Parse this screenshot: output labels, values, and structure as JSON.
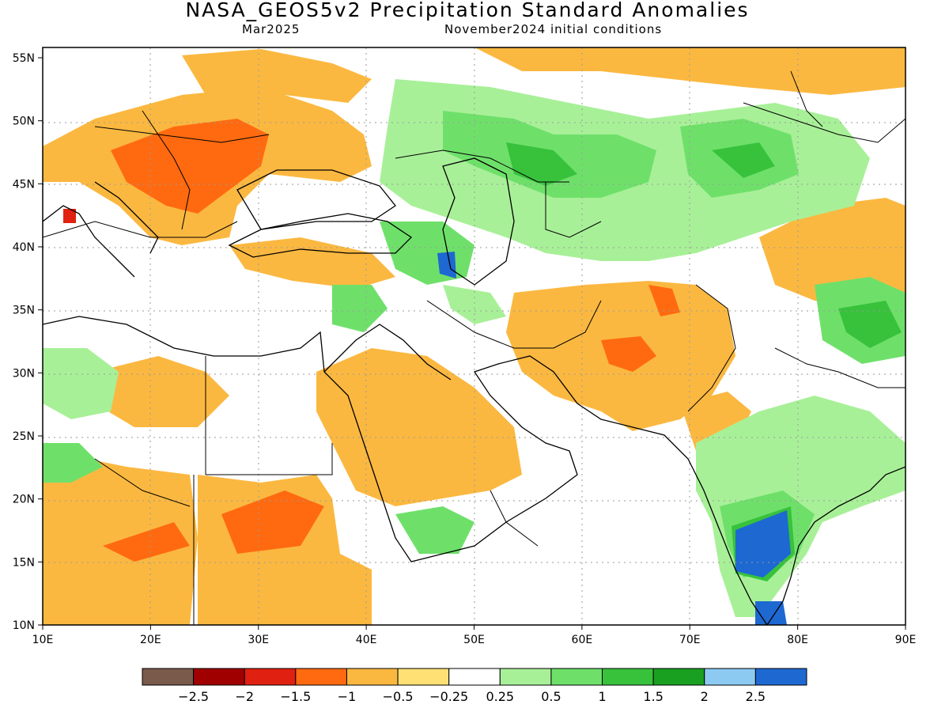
{
  "title": "NASA_GEOS5v2 Precipitation Standard Anomalies",
  "subtitle_left": "Mar2025",
  "subtitle_right": "November2024 initial conditions",
  "lon_labels": [
    "10E",
    "20E",
    "30E",
    "40E",
    "50E",
    "60E",
    "70E",
    "80E",
    "90E"
  ],
  "lat_labels": [
    "10N",
    "15N",
    "20N",
    "25N",
    "30N",
    "35N",
    "40N",
    "45N",
    "50N",
    "55N"
  ],
  "colorbar": {
    "labels": [
      "−2.5",
      "−2",
      "−1.5",
      "−1",
      "−0.5",
      "−0.25",
      "0.25",
      "0.5",
      "1",
      "1.5",
      "2",
      "2.5"
    ],
    "colors": [
      "#7a5a4a",
      "#a00000",
      "#e02010",
      "#ff6a10",
      "#fbb840",
      "#ffe075",
      "#ffffff",
      "#a8f098",
      "#6ee06a",
      "#38c23c",
      "#1aa020",
      "#8ccaf2",
      "#1e68d2"
    ]
  }
}
